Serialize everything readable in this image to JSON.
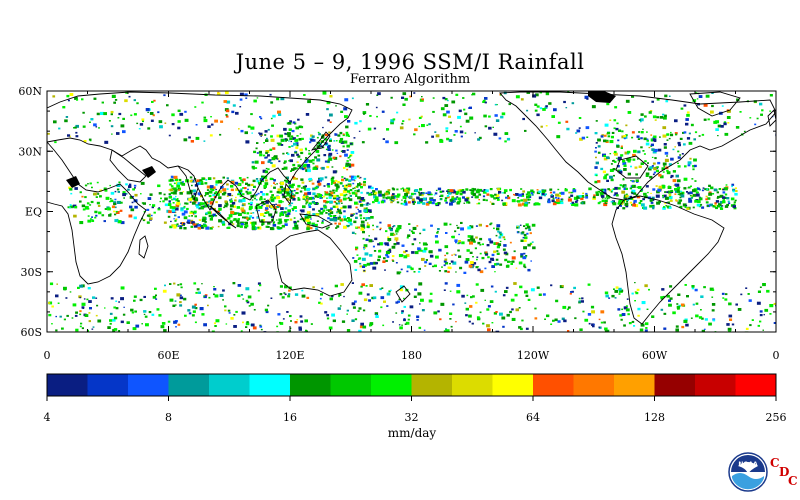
{
  "title": "June 5 – 9, 1996 SSM/I Rainfall",
  "subtitle": "Ferraro Algorithm",
  "lat_labels": [
    "60N",
    "30N",
    "EQ",
    "30S",
    "60S"
  ],
  "lon_labels": [
    "0",
    "60E",
    "120E",
    "180",
    "120W",
    "60W",
    "0"
  ],
  "colorbar": {
    "tick_labels": [
      "4",
      "8",
      "16",
      "32",
      "64",
      "128",
      "256"
    ],
    "unit": "mm/day",
    "colors": [
      "#0a1e82",
      "#0536c8",
      "#0f55ff",
      "#009b9b",
      "#00cdcd",
      "#00ffff",
      "#009600",
      "#00c800",
      "#00f000",
      "#b4b400",
      "#dcdc00",
      "#ffff00",
      "#ff5000",
      "#ff7800",
      "#ffa000",
      "#960000",
      "#c80000",
      "#ff0000"
    ]
  },
  "logo": {
    "text": "NOAA",
    "cdc_letters": [
      "C",
      "D",
      "C"
    ]
  },
  "map_data": {
    "projection": "equirectangular",
    "lon_range": [
      0,
      360
    ],
    "lat_range": [
      -60,
      60
    ],
    "field": "SSM/I rainfall, mm/day (log scale)"
  }
}
